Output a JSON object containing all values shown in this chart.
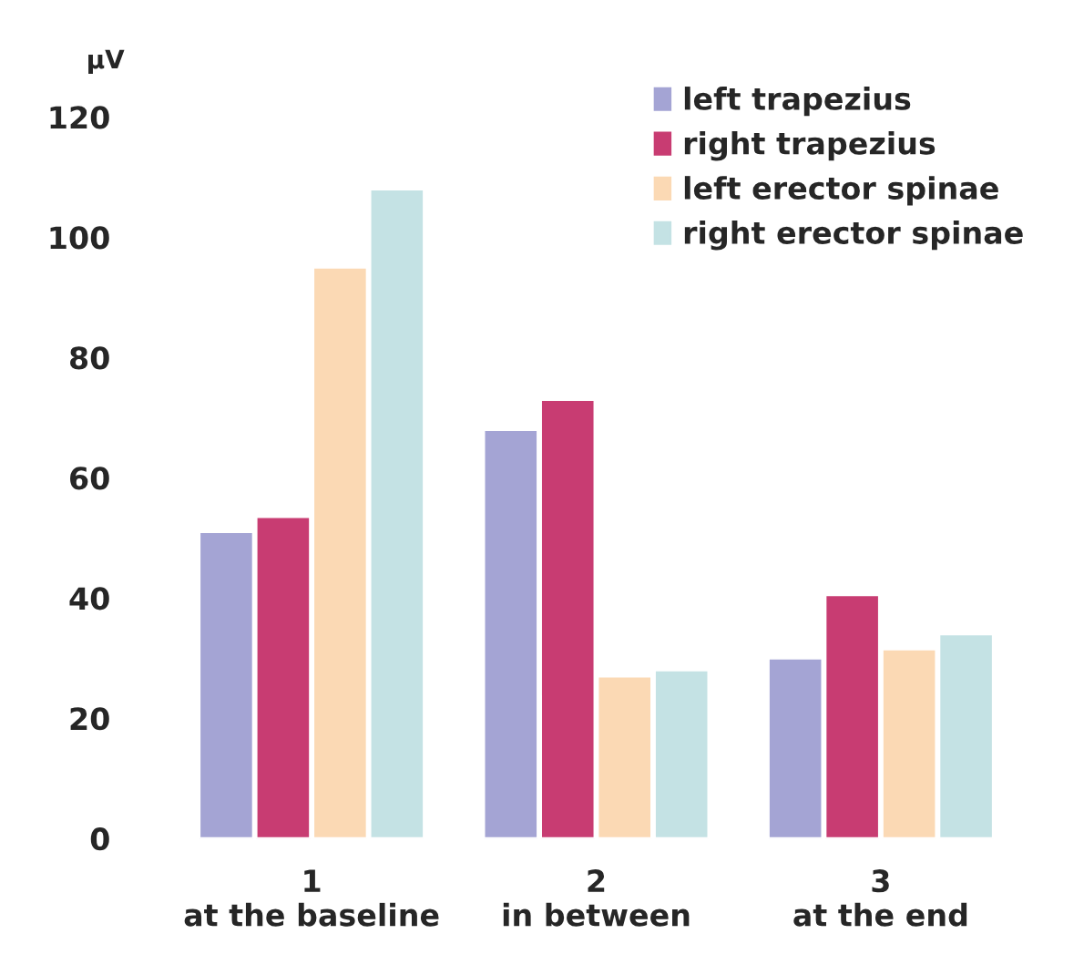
{
  "chart_data": {
    "type": "bar",
    "ylabel": "μV",
    "categories": [
      "1\nat the baseline",
      "2\nin between",
      "3\nat the end"
    ],
    "series": [
      {
        "name": "left trapezius",
        "color": "#a4a4d4",
        "values": [
          51,
          68,
          30
        ]
      },
      {
        "name": "right trapezius",
        "color": "#c83c72",
        "values": [
          53.5,
          73,
          40.5
        ]
      },
      {
        "name": "left erector spinae",
        "color": "#fbd9b4",
        "values": [
          95,
          27,
          31.5
        ]
      },
      {
        "name": "right erector spinae",
        "color": "#c4e2e4",
        "values": [
          108,
          28,
          34
        ]
      }
    ],
    "ylim": [
      0,
      120
    ],
    "yticks": [
      0,
      20,
      40,
      60,
      80,
      100,
      120
    ],
    "grid": false,
    "legend": "top right"
  }
}
